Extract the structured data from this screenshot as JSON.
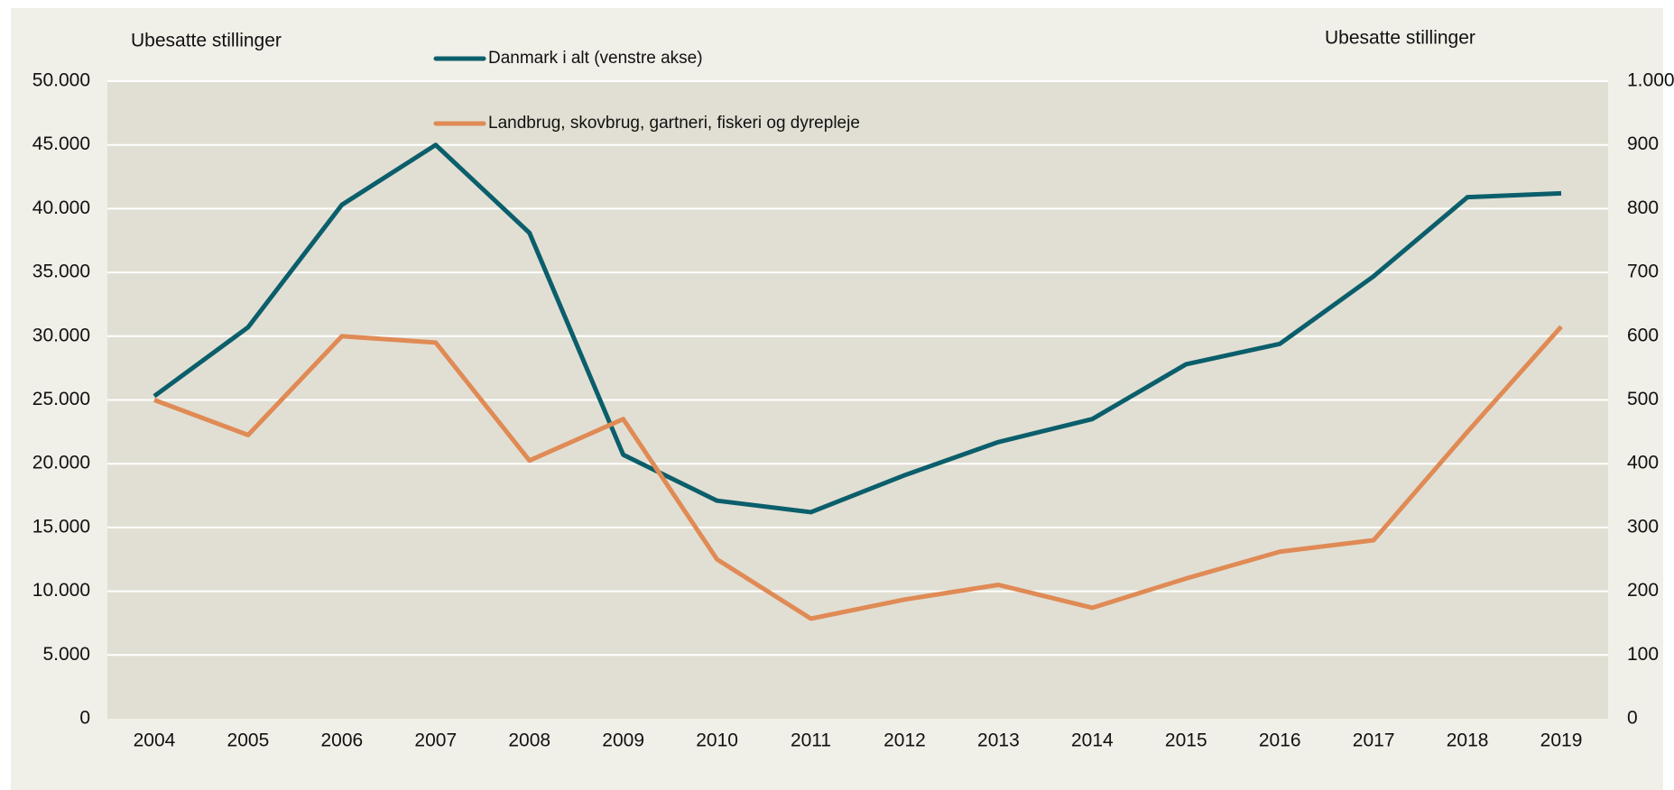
{
  "chart_data": {
    "type": "line",
    "y_label": "Ubesatte stillinger",
    "y2_label": "Ubesatte stillinger",
    "categories": [
      "2004",
      "2005",
      "2006",
      "2007",
      "2008",
      "2009",
      "2010",
      "2011",
      "2012",
      "2013",
      "2014",
      "2015",
      "2016",
      "2017",
      "2018",
      "2019"
    ],
    "series": [
      {
        "name": "Danmark i alt (venstre akse)",
        "color": "#0b5e6b",
        "values": [
          25300,
          30700,
          40300,
          45000,
          38100,
          20700,
          17100,
          16200,
          19100,
          21700,
          23500,
          27800,
          29400,
          34700,
          40900,
          41200
        ]
      },
      {
        "name": "Landbrug, skovbrug, gartneri, fiskeri og dyrepleje",
        "color": "#e08a55",
        "axis": "y2",
        "values": [
          500,
          445,
          600,
          590,
          405,
          470,
          250,
          157,
          187,
          210,
          174,
          220,
          262,
          280,
          450,
          615
        ]
      }
    ],
    "ylim": [
      0,
      50000
    ],
    "yticks": [
      0,
      {
        "value": 5000,
        "label": "5.000"
      },
      {
        "value": 10000,
        "label": "10.000"
      },
      {
        "value": 15000,
        "label": "15.000"
      },
      {
        "value": 20000,
        "label": "20.000"
      },
      {
        "value": 25000,
        "label": "25.000"
      },
      {
        "value": 30000,
        "label": "30.000"
      },
      {
        "value": 35000,
        "label": "35.000"
      },
      {
        "value": 40000,
        "label": "40.000"
      },
      {
        "value": 45000,
        "label": "45.000"
      },
      {
        "value": 50000,
        "label": "50.000"
      }
    ],
    "y2lim": [
      0,
      1000
    ],
    "y2ticks": [
      0,
      100,
      200,
      300,
      400,
      500,
      600,
      700,
      800,
      900,
      {
        "value": 1000,
        "label": "1.000"
      }
    ],
    "grid": true
  }
}
